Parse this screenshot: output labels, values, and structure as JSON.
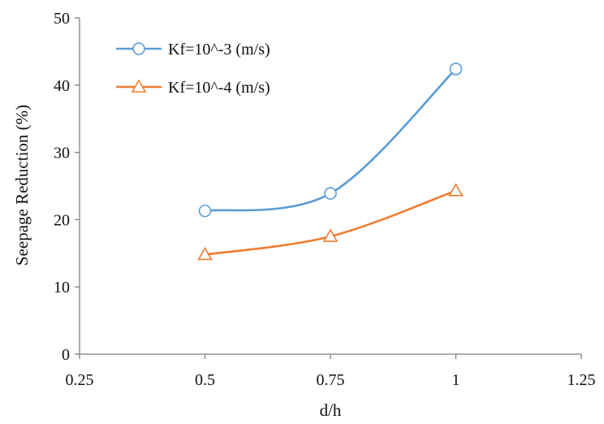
{
  "chart_data": {
    "type": "line",
    "xlabel": "d/h",
    "ylabel": "Seepage Reduction (%)",
    "xlim": [
      0.25,
      1.25
    ],
    "ylim": [
      0,
      50
    ],
    "xticks": [
      "0.25",
      "0.5",
      "0.75",
      "1",
      "1.25"
    ],
    "yticks": [
      "0",
      "10",
      "20",
      "30",
      "40",
      "50"
    ],
    "xtick_values": [
      0.25,
      0.5,
      0.75,
      1.0,
      1.25
    ],
    "ytick_values": [
      0,
      10,
      20,
      30,
      40,
      50
    ],
    "grid": false,
    "legend_position": "top-left",
    "smooth": true,
    "series": [
      {
        "name": "Kf=10^-3 (m/s)",
        "marker": "circle",
        "color": "#5b9bd5",
        "x": [
          0.5,
          0.75,
          1.0
        ],
        "y": [
          21.3,
          23.9,
          42.4
        ]
      },
      {
        "name": "Kf=10^-4 (m/s)",
        "marker": "triangle",
        "color": "#ed7d31",
        "x": [
          0.5,
          0.75,
          1.0
        ],
        "y": [
          14.8,
          17.5,
          24.3
        ]
      }
    ]
  }
}
